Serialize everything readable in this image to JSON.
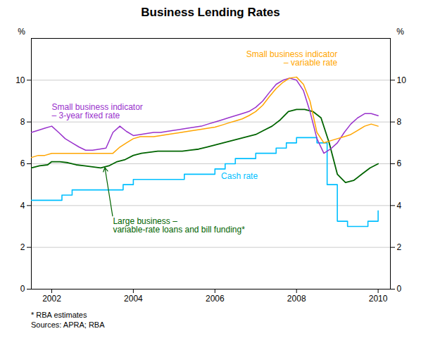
{
  "chart_data": {
    "type": "line",
    "title": "Business Lending Rates",
    "ylabel": "%",
    "y2label": "%",
    "xlim": [
      2001.5,
      2010.3
    ],
    "xticks": [
      2002,
      2004,
      2006,
      2008,
      2010
    ],
    "ylim": [
      0,
      12
    ],
    "yticks": [
      0,
      2,
      4,
      6,
      8,
      10
    ],
    "grid": true,
    "series": [
      {
        "color": "#00bfff",
        "x": [
          2001.5,
          2001.75,
          2001.75,
          2002.0,
          2002.0,
          2002.25,
          2002.25,
          2002.5,
          2002.5,
          2002.75,
          2002.75,
          2003.0,
          2003.0,
          2003.25,
          2003.25,
          2003.5,
          2003.5,
          2003.75,
          2003.75,
          2004.0,
          2004.0,
          2004.25,
          2004.25,
          2004.5,
          2004.5,
          2004.75,
          2004.75,
          2005.0,
          2005.0,
          2005.25,
          2005.25,
          2005.5,
          2005.5,
          2005.75,
          2005.75,
          2006.0,
          2006.0,
          2006.25,
          2006.25,
          2006.5,
          2006.5,
          2006.75,
          2006.75,
          2007.0,
          2007.0,
          2007.25,
          2007.25,
          2007.5,
          2007.5,
          2007.75,
          2007.75,
          2008.0,
          2008.0,
          2008.25,
          2008.25,
          2008.5,
          2008.5,
          2008.75,
          2008.75,
          2009.0,
          2009.0,
          2009.25,
          2009.25,
          2009.5,
          2009.5,
          2009.75,
          2009.75,
          2010.0,
          2010.0
        ],
        "values": [
          4.25,
          4.25,
          4.25,
          4.25,
          4.25,
          4.25,
          4.5,
          4.5,
          4.75,
          4.75,
          4.75,
          4.75,
          4.75,
          4.75,
          4.75,
          4.75,
          4.75,
          4.75,
          5.0,
          5.0,
          5.25,
          5.25,
          5.25,
          5.25,
          5.25,
          5.25,
          5.25,
          5.25,
          5.25,
          5.25,
          5.5,
          5.5,
          5.5,
          5.5,
          5.5,
          5.5,
          5.75,
          5.75,
          6.0,
          6.0,
          6.25,
          6.25,
          6.25,
          6.25,
          6.5,
          6.5,
          6.5,
          6.5,
          6.75,
          6.75,
          7.0,
          7.0,
          7.25,
          7.25,
          7.25,
          7.25,
          7.0,
          7.0,
          5.0,
          5.0,
          3.25,
          3.25,
          3.0,
          3.0,
          3.0,
          3.0,
          3.25,
          3.25,
          3.75
        ]
      },
      {
        "color": "#006400",
        "x": [
          2001.5,
          2001.7,
          2001.9,
          2002.0,
          2002.2,
          2002.4,
          2002.6,
          2002.8,
          2003.0,
          2003.2,
          2003.4,
          2003.6,
          2003.8,
          2004.0,
          2004.2,
          2004.4,
          2004.6,
          2004.8,
          2005.0,
          2005.2,
          2005.4,
          2005.6,
          2005.8,
          2006.0,
          2006.2,
          2006.4,
          2006.6,
          2006.8,
          2007.0,
          2007.2,
          2007.4,
          2007.6,
          2007.8,
          2008.0,
          2008.2,
          2008.4,
          2008.6,
          2008.8,
          2009.0,
          2009.2,
          2009.4,
          2009.6,
          2009.8,
          2010.0
        ],
        "values": [
          5.8,
          5.9,
          5.95,
          6.1,
          6.1,
          6.05,
          5.95,
          5.9,
          5.85,
          5.8,
          5.9,
          6.1,
          6.2,
          6.4,
          6.5,
          6.55,
          6.6,
          6.6,
          6.6,
          6.6,
          6.65,
          6.7,
          6.8,
          6.9,
          7.0,
          7.1,
          7.2,
          7.3,
          7.4,
          7.6,
          7.8,
          8.1,
          8.5,
          8.6,
          8.6,
          8.5,
          8.2,
          7.0,
          5.5,
          5.1,
          5.2,
          5.5,
          5.8,
          6.0
        ]
      },
      {
        "color": "#9932cc",
        "x": [
          2001.5,
          2001.67,
          2001.83,
          2002.0,
          2002.17,
          2002.33,
          2002.5,
          2002.67,
          2002.83,
          2003.0,
          2003.17,
          2003.33,
          2003.5,
          2003.67,
          2003.83,
          2004.0,
          2004.17,
          2004.33,
          2004.5,
          2004.67,
          2004.83,
          2005.0,
          2005.17,
          2005.33,
          2005.5,
          2005.67,
          2005.83,
          2006.0,
          2006.17,
          2006.33,
          2006.5,
          2006.67,
          2006.83,
          2007.0,
          2007.17,
          2007.33,
          2007.5,
          2007.67,
          2007.83,
          2008.0,
          2008.17,
          2008.33,
          2008.5,
          2008.67,
          2008.83,
          2009.0,
          2009.17,
          2009.33,
          2009.5,
          2009.67,
          2009.83,
          2010.0
        ],
        "values": [
          7.5,
          7.6,
          7.7,
          7.8,
          7.5,
          7.2,
          7.0,
          6.8,
          6.65,
          6.65,
          6.7,
          6.75,
          7.5,
          7.8,
          7.55,
          7.35,
          7.4,
          7.45,
          7.5,
          7.5,
          7.55,
          7.6,
          7.65,
          7.7,
          7.75,
          7.8,
          7.9,
          8.0,
          8.1,
          8.2,
          8.3,
          8.4,
          8.5,
          8.7,
          9.0,
          9.4,
          9.8,
          10.0,
          10.1,
          10.0,
          9.5,
          8.5,
          7.2,
          6.5,
          6.7,
          7.0,
          7.5,
          7.9,
          8.2,
          8.4,
          8.4,
          8.3
        ]
      },
      {
        "color": "#ffa500",
        "x": [
          2001.5,
          2001.67,
          2001.83,
          2002.0,
          2002.17,
          2002.33,
          2002.5,
          2002.67,
          2002.83,
          2003.0,
          2003.17,
          2003.33,
          2003.5,
          2003.67,
          2003.83,
          2004.0,
          2004.17,
          2004.33,
          2004.5,
          2004.67,
          2004.83,
          2005.0,
          2005.17,
          2005.33,
          2005.5,
          2005.67,
          2005.83,
          2006.0,
          2006.17,
          2006.33,
          2006.5,
          2006.67,
          2006.83,
          2007.0,
          2007.17,
          2007.33,
          2007.5,
          2007.67,
          2007.83,
          2008.0,
          2008.17,
          2008.33,
          2008.5,
          2008.67,
          2008.83,
          2009.0,
          2009.17,
          2009.33,
          2009.5,
          2009.67,
          2009.83,
          2010.0
        ],
        "values": [
          6.3,
          6.4,
          6.4,
          6.5,
          6.5,
          6.5,
          6.5,
          6.5,
          6.5,
          6.5,
          6.5,
          6.5,
          6.5,
          6.8,
          7.0,
          7.2,
          7.3,
          7.3,
          7.3,
          7.35,
          7.4,
          7.45,
          7.5,
          7.55,
          7.6,
          7.65,
          7.7,
          7.75,
          7.85,
          7.95,
          8.05,
          8.15,
          8.3,
          8.5,
          8.8,
          9.2,
          9.6,
          9.9,
          10.1,
          10.15,
          9.8,
          9.0,
          7.5,
          7.0,
          7.1,
          7.2,
          7.3,
          7.4,
          7.6,
          7.8,
          7.9,
          7.8
        ]
      }
    ],
    "annotations": [
      {
        "text": "Cash rate",
        "x": 2006.6,
        "y": 5.55,
        "color": "#00bfff"
      },
      {
        "text": "Small business indicator\n– 3-year fixed rate",
        "x": 2002.0,
        "y": 8.85,
        "color": "#9932cc"
      },
      {
        "text": "Small business indicator\n– variable rate",
        "x": 2009.0,
        "y": 11.4,
        "color": "#ffa500"
      },
      {
        "text": "Large business –\nvariable-rate loans and bill funding*",
        "x": 2003.5,
        "y": 3.4,
        "color": "#006400",
        "arrow_to": [
          2003.3,
          5.85
        ]
      }
    ],
    "caption": "* RBA estimates\nSources: APRA; RBA"
  }
}
